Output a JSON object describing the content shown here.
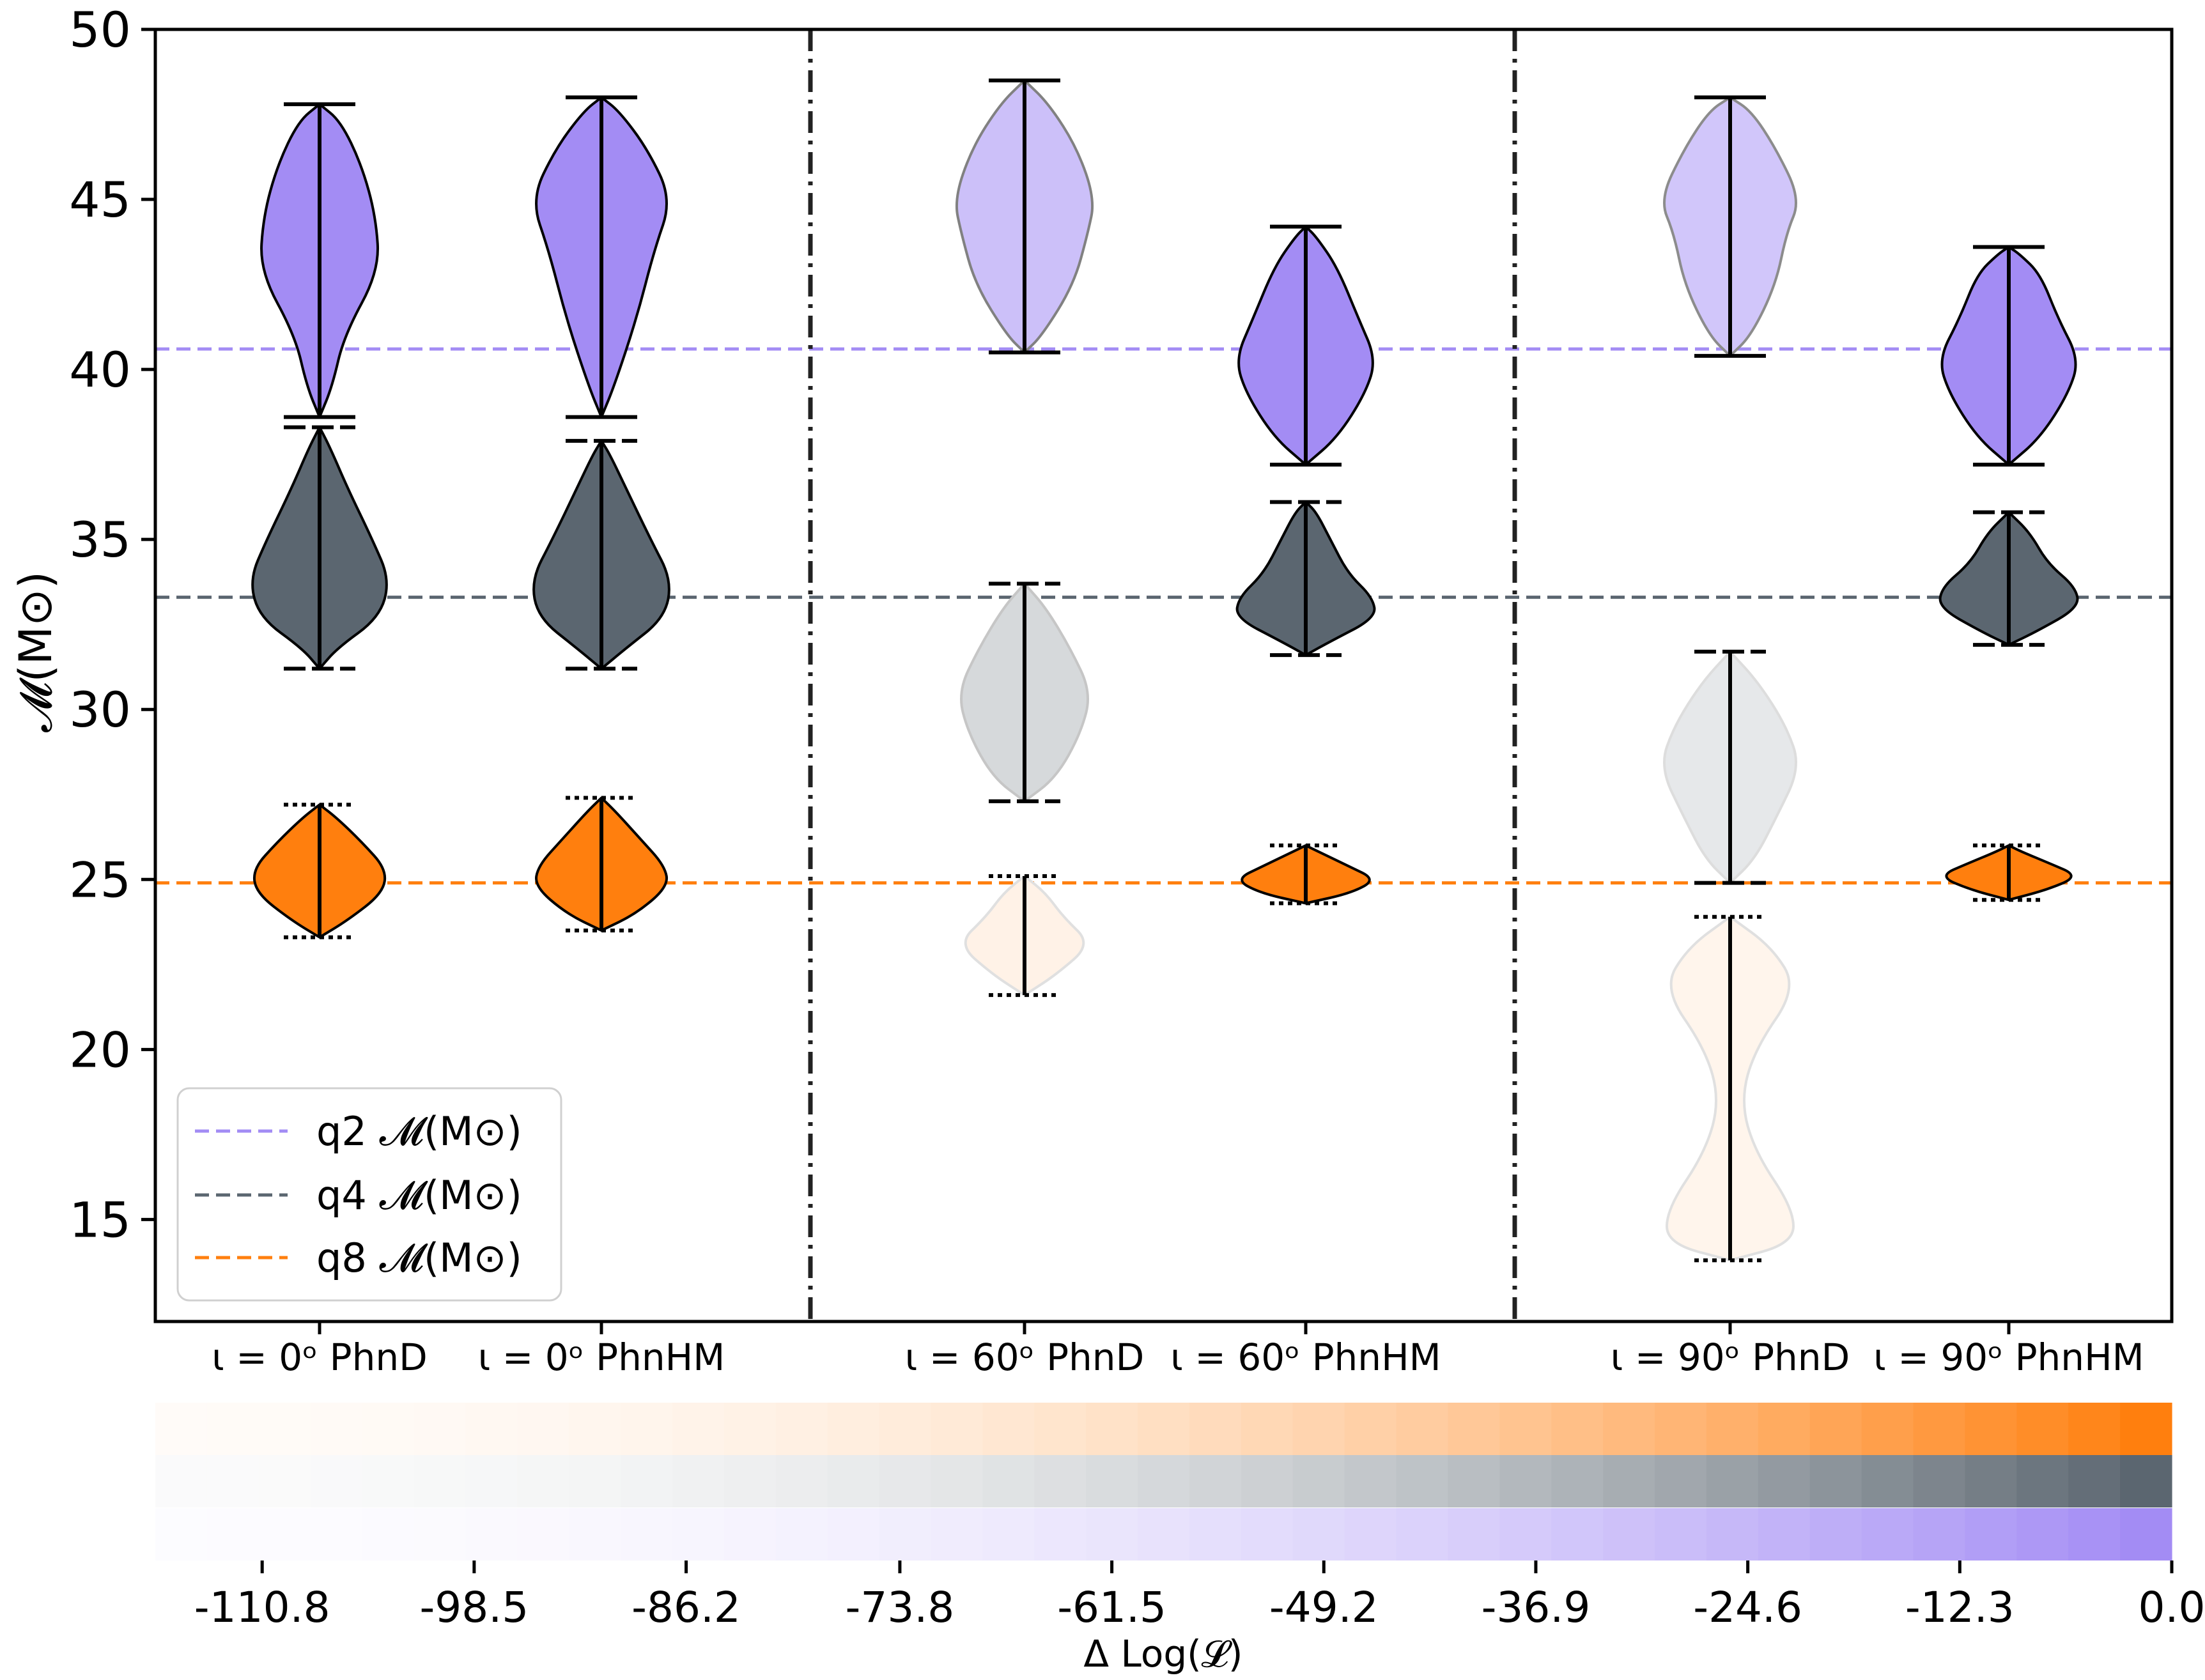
{
  "colors": {
    "q2": "#a38cf4",
    "q4": "#5b6670",
    "q8": "#ff7f0e",
    "axis": "#000000",
    "separator": "#222222"
  },
  "chart_data": {
    "type": "violin",
    "ylabel": "𝓜(M⊙)",
    "ylim": [
      12,
      50
    ],
    "yticks": [
      15,
      20,
      25,
      30,
      35,
      40,
      45,
      50
    ],
    "categories": [
      {
        "label": "ι = 0ᵒ PhnD"
      },
      {
        "label": "ι = 0ᵒ PhnHM"
      },
      {
        "label": "ι = 60ᵒ PhnD"
      },
      {
        "label": "ι = 60ᵒ PhnHM"
      },
      {
        "label": "ι = 90ᵒ PhnD"
      },
      {
        "label": "ι = 90ᵒ PhnHM"
      }
    ],
    "reference_lines": [
      {
        "name": "q2",
        "label": "q2 𝓜(M⊙)",
        "value": 40.6
      },
      {
        "name": "q4",
        "label": "q4 𝓜(M⊙)",
        "value": 33.3
      },
      {
        "name": "q8",
        "label": "q8 𝓜(M⊙)",
        "value": 24.9
      }
    ],
    "violins": [
      {
        "group": 0,
        "series": "q2",
        "min": 38.6,
        "max": 47.8,
        "alpha": 1.0,
        "profile": [
          [
            38.6,
            0
          ],
          [
            39.5,
            0.18
          ],
          [
            41,
            0.35
          ],
          [
            42.9,
            0.85
          ],
          [
            44.5,
            0.8
          ],
          [
            46,
            0.6
          ],
          [
            47.3,
            0.3
          ],
          [
            47.8,
            0
          ]
        ]
      },
      {
        "group": 0,
        "series": "q4",
        "min": 31.2,
        "max": 38.3,
        "alpha": 1.0,
        "profile": [
          [
            31.2,
            0
          ],
          [
            31.8,
            0.25
          ],
          [
            32.7,
            0.85
          ],
          [
            33.8,
            1.0
          ],
          [
            35,
            0.75
          ],
          [
            36.5,
            0.4
          ],
          [
            37.7,
            0.15
          ],
          [
            38.3,
            0
          ]
        ]
      },
      {
        "group": 0,
        "series": "q8",
        "min": 23.3,
        "max": 27.2,
        "alpha": 1.0,
        "profile": [
          [
            23.3,
            0
          ],
          [
            23.8,
            0.4
          ],
          [
            24.6,
            0.9
          ],
          [
            25.3,
            0.95
          ],
          [
            26.1,
            0.6
          ],
          [
            26.8,
            0.25
          ],
          [
            27.2,
            0
          ]
        ]
      },
      {
        "group": 1,
        "series": "q2",
        "min": 38.6,
        "max": 48.0,
        "alpha": 1.0,
        "profile": [
          [
            38.6,
            0
          ],
          [
            39.5,
            0.18
          ],
          [
            41.5,
            0.5
          ],
          [
            43.5,
            0.75
          ],
          [
            45,
            1.0
          ],
          [
            46.5,
            0.65
          ],
          [
            47.6,
            0.25
          ],
          [
            48.0,
            0
          ]
        ]
      },
      {
        "group": 1,
        "series": "q4",
        "min": 31.2,
        "max": 37.9,
        "alpha": 1.0,
        "profile": [
          [
            31.2,
            0
          ],
          [
            31.8,
            0.35
          ],
          [
            32.7,
            0.9
          ],
          [
            33.8,
            1.0
          ],
          [
            35,
            0.7
          ],
          [
            36.5,
            0.35
          ],
          [
            37.5,
            0.12
          ],
          [
            37.9,
            0
          ]
        ]
      },
      {
        "group": 1,
        "series": "q8",
        "min": 23.5,
        "max": 27.4,
        "alpha": 1.0,
        "profile": [
          [
            23.5,
            0
          ],
          [
            24,
            0.5
          ],
          [
            24.8,
            0.95
          ],
          [
            25.4,
            0.9
          ],
          [
            26.2,
            0.55
          ],
          [
            27,
            0.2
          ],
          [
            27.4,
            0
          ]
        ]
      },
      {
        "group": 2,
        "series": "q2",
        "min": 40.5,
        "max": 48.5,
        "alpha": 0.55,
        "profile": [
          [
            40.5,
            0
          ],
          [
            41,
            0.25
          ],
          [
            42.5,
            0.7
          ],
          [
            44,
            0.9
          ],
          [
            45,
            1.0
          ],
          [
            46.5,
            0.75
          ],
          [
            47.8,
            0.35
          ],
          [
            48.5,
            0
          ]
        ]
      },
      {
        "group": 2,
        "series": "q4",
        "min": 27.3,
        "max": 33.7,
        "alpha": 0.25,
        "profile": [
          [
            27.3,
            0
          ],
          [
            28,
            0.45
          ],
          [
            29.3,
            0.8
          ],
          [
            30.5,
            0.95
          ],
          [
            31.8,
            0.65
          ],
          [
            33,
            0.3
          ],
          [
            33.7,
            0
          ]
        ]
      },
      {
        "group": 2,
        "series": "q8",
        "min": 21.6,
        "max": 25.1,
        "alpha": 0.1,
        "profile": [
          [
            21.6,
            0
          ],
          [
            22.2,
            0.45
          ],
          [
            23.1,
            0.95
          ],
          [
            23.9,
            0.55
          ],
          [
            24.6,
            0.3
          ],
          [
            25.1,
            0
          ]
        ]
      },
      {
        "group": 3,
        "series": "q2",
        "min": 37.2,
        "max": 44.2,
        "alpha": 1.0,
        "profile": [
          [
            37.2,
            0
          ],
          [
            38,
            0.45
          ],
          [
            39.3,
            0.85
          ],
          [
            40.3,
            1.0
          ],
          [
            41.5,
            0.75
          ],
          [
            43,
            0.45
          ],
          [
            43.9,
            0.15
          ],
          [
            44.2,
            0
          ]
        ]
      },
      {
        "group": 3,
        "series": "q4",
        "min": 31.6,
        "max": 36.1,
        "alpha": 1.0,
        "profile": [
          [
            31.6,
            0
          ],
          [
            32,
            0.35
          ],
          [
            32.7,
            1.0
          ],
          [
            33.3,
            0.95
          ],
          [
            34,
            0.6
          ],
          [
            35,
            0.35
          ],
          [
            35.8,
            0.15
          ],
          [
            36.1,
            0
          ]
        ]
      },
      {
        "group": 3,
        "series": "q8",
        "min": 24.3,
        "max": 26.0,
        "alpha": 1.0,
        "profile": [
          [
            24.3,
            0
          ],
          [
            24.6,
            0.65
          ],
          [
            25.0,
            1.0
          ],
          [
            25.4,
            0.6
          ],
          [
            25.8,
            0.2
          ],
          [
            26.0,
            0
          ]
        ]
      },
      {
        "group": 4,
        "series": "q2",
        "min": 40.4,
        "max": 48.0,
        "alpha": 0.5,
        "profile": [
          [
            40.4,
            0
          ],
          [
            41,
            0.3
          ],
          [
            42.5,
            0.65
          ],
          [
            44,
            0.8
          ],
          [
            45,
            1.0
          ],
          [
            46.5,
            0.65
          ],
          [
            47.6,
            0.3
          ],
          [
            48.0,
            0
          ]
        ]
      },
      {
        "group": 4,
        "series": "q4",
        "min": 24.9,
        "max": 31.7,
        "alpha": 0.15,
        "profile": [
          [
            24.9,
            0
          ],
          [
            25.6,
            0.35
          ],
          [
            26.8,
            0.65
          ],
          [
            28.3,
            1.0
          ],
          [
            29.5,
            0.8
          ],
          [
            30.8,
            0.4
          ],
          [
            31.7,
            0
          ]
        ]
      },
      {
        "group": 4,
        "series": "q8",
        "min": 13.8,
        "max": 23.9,
        "alpha": 0.08,
        "profile": [
          [
            13.8,
            0
          ],
          [
            14.3,
            0.9
          ],
          [
            15.3,
            0.9
          ],
          [
            17,
            0.35
          ],
          [
            18.5,
            0.15
          ],
          [
            20,
            0.35
          ],
          [
            21.8,
            0.95
          ],
          [
            23,
            0.6
          ],
          [
            23.9,
            0
          ]
        ]
      },
      {
        "group": 5,
        "series": "q2",
        "min": 37.2,
        "max": 43.6,
        "alpha": 1.0,
        "profile": [
          [
            37.2,
            0
          ],
          [
            38,
            0.45
          ],
          [
            39.3,
            0.85
          ],
          [
            40.3,
            1.0
          ],
          [
            41.5,
            0.7
          ],
          [
            42.8,
            0.45
          ],
          [
            43.4,
            0.15
          ],
          [
            43.6,
            0
          ]
        ]
      },
      {
        "group": 5,
        "series": "q4",
        "min": 31.9,
        "max": 35.8,
        "alpha": 1.0,
        "profile": [
          [
            31.9,
            0
          ],
          [
            32.3,
            0.4
          ],
          [
            33,
            1.0
          ],
          [
            33.6,
            0.95
          ],
          [
            34.3,
            0.55
          ],
          [
            35.2,
            0.3
          ],
          [
            35.8,
            0
          ]
        ]
      },
      {
        "group": 5,
        "series": "q8",
        "min": 24.4,
        "max": 26.0,
        "alpha": 1.0,
        "profile": [
          [
            24.4,
            0
          ],
          [
            24.7,
            0.55
          ],
          [
            25.1,
            1.0
          ],
          [
            25.5,
            0.55
          ],
          [
            25.8,
            0.2
          ],
          [
            26.0,
            0
          ]
        ]
      }
    ],
    "colorbar": {
      "xlabel": "Δ Log(𝓛)",
      "range": [
        -117,
        0
      ],
      "cells": 39,
      "ticks": [
        "-110.8",
        "-98.5",
        "-86.2",
        "-73.8",
        "-61.5",
        "-49.2",
        "-36.9",
        "-24.6",
        "-12.3",
        "0.0"
      ],
      "tick_values": [
        -110.8,
        -98.5,
        -86.2,
        -73.8,
        -61.5,
        -49.2,
        -36.9,
        -24.6,
        -12.3,
        0.0
      ],
      "rows": [
        "q8",
        "q4",
        "q2"
      ]
    }
  }
}
